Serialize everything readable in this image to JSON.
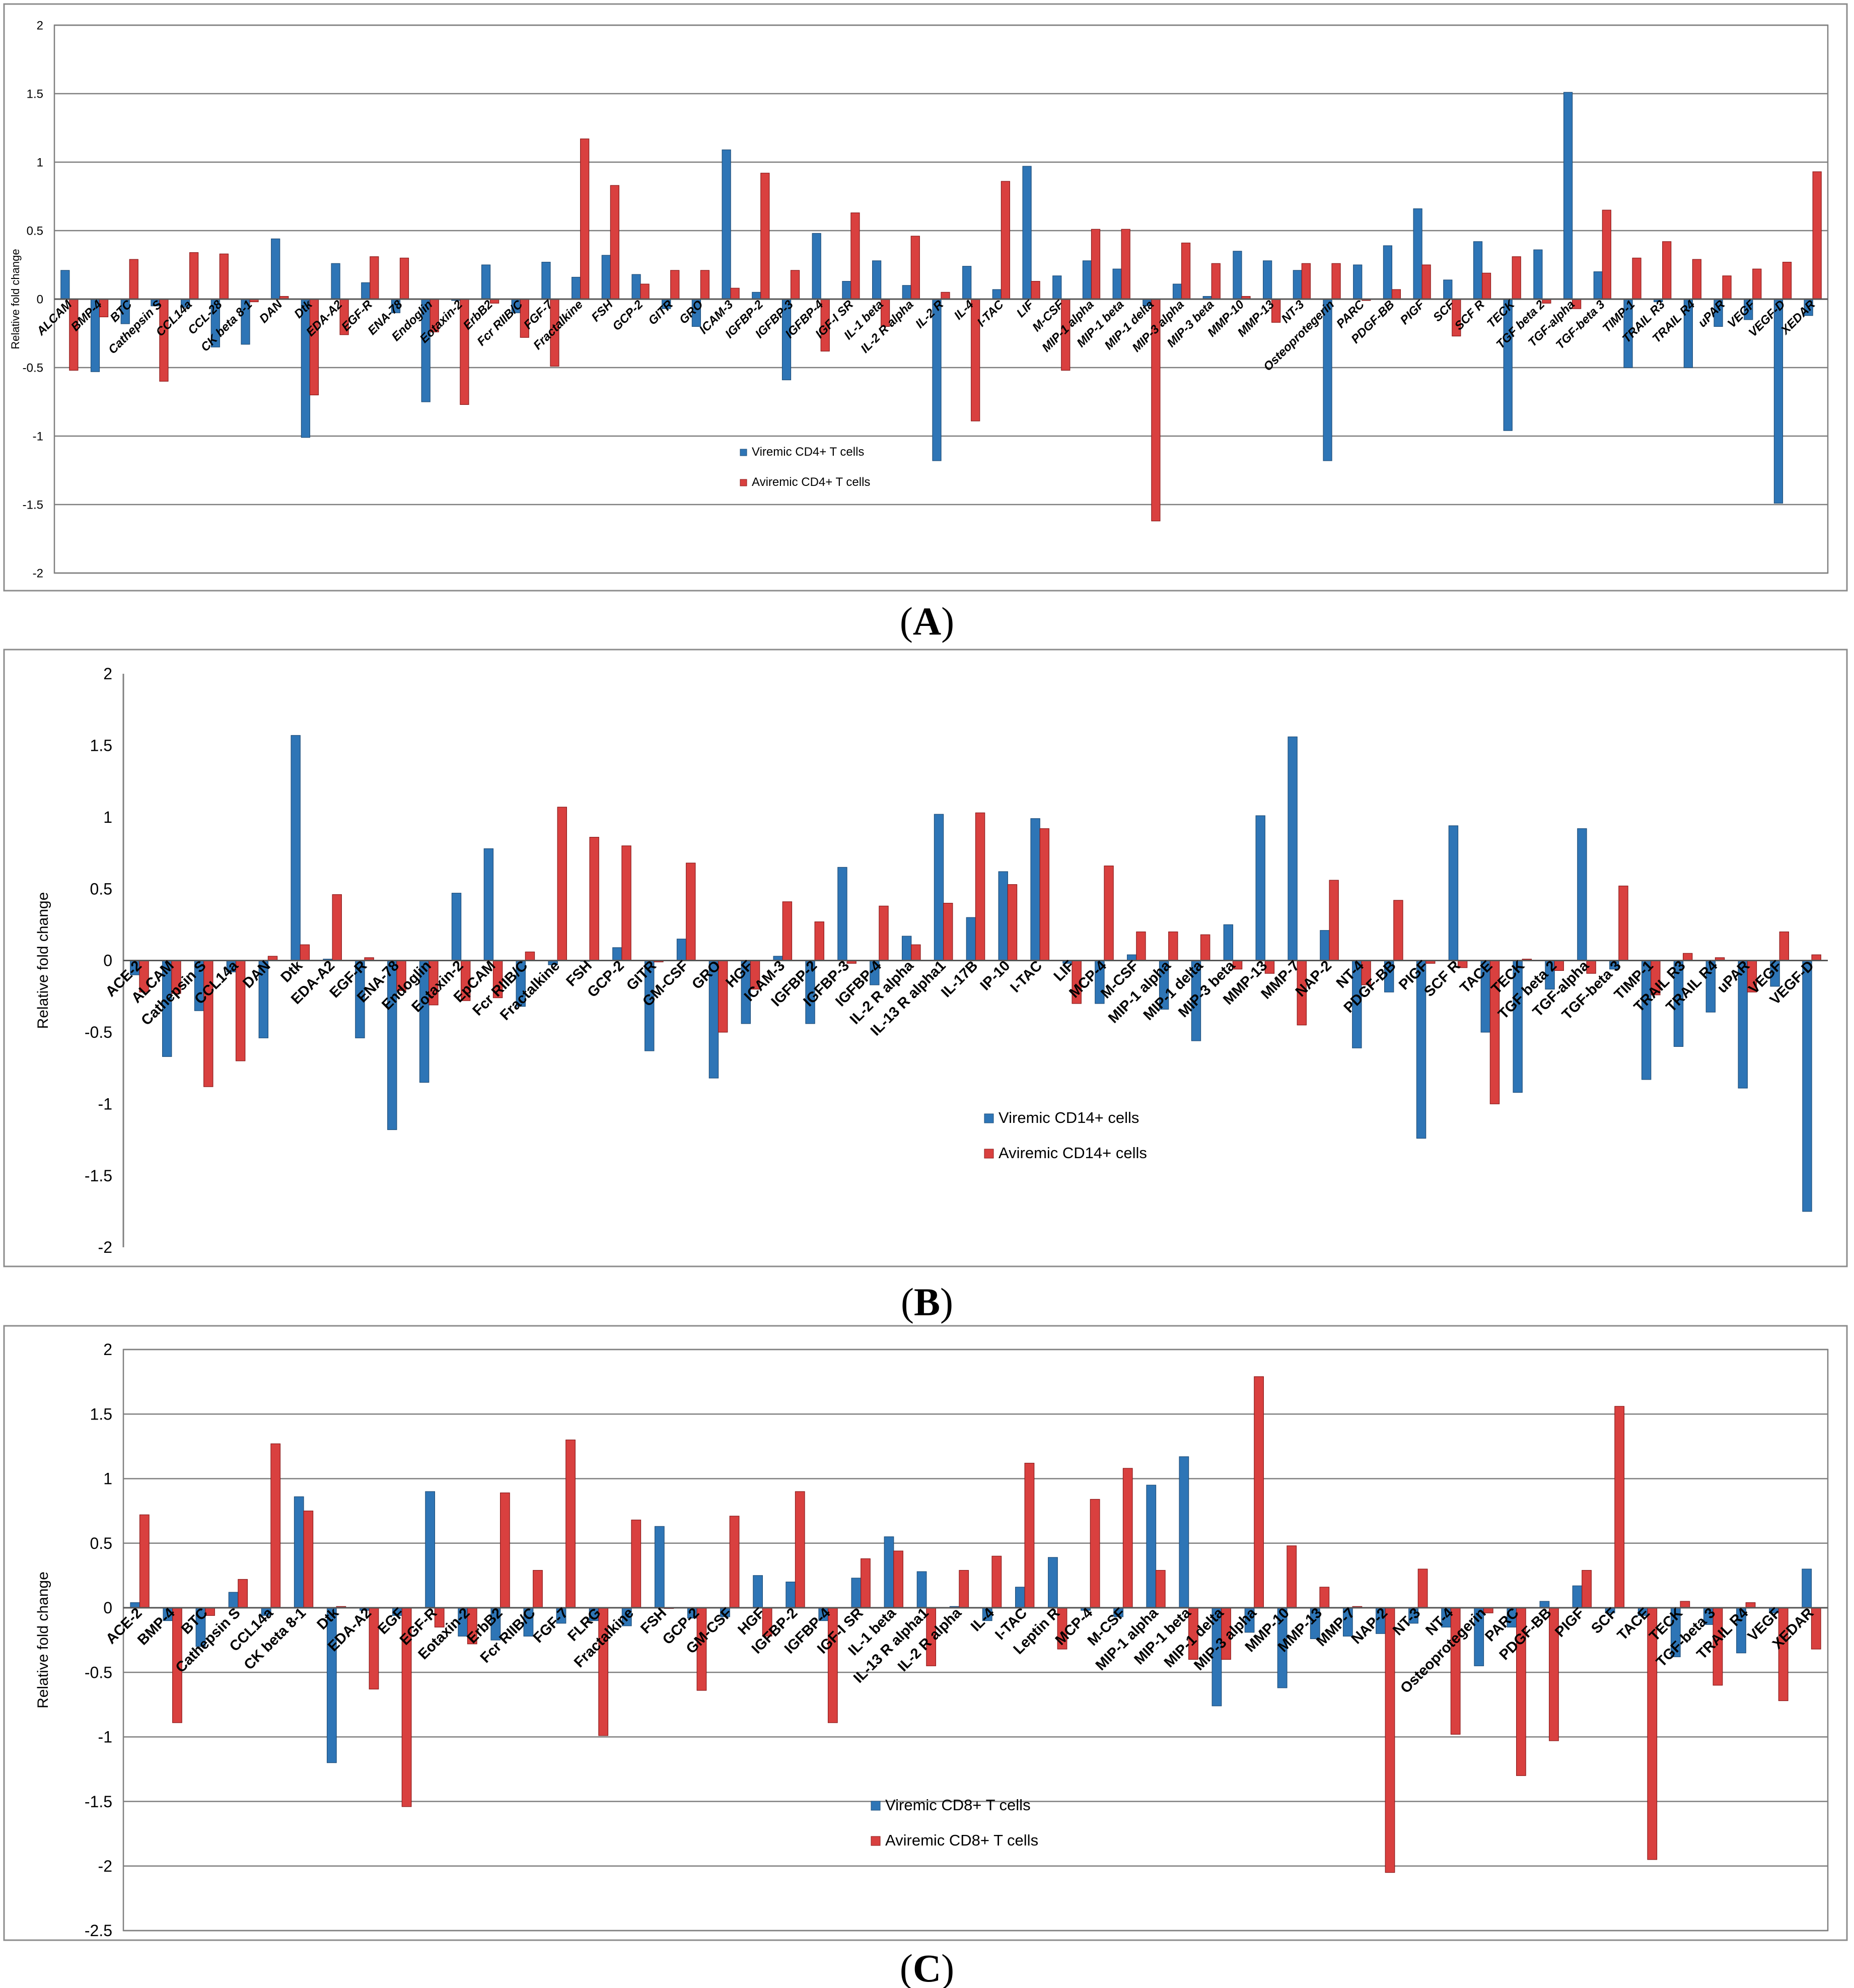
{
  "panels": [
    {
      "letter": "A"
    },
    {
      "letter": "B"
    },
    {
      "letter": "C"
    }
  ],
  "colors": {
    "viremic": "#2E75B6",
    "aviremic": "#D9403F",
    "viremic_edge": "#1F4E79",
    "aviremic_edge": "#8B1A1A",
    "grid": "#7F7F7F"
  },
  "chart_data": [
    {
      "type": "bar",
      "title": "",
      "xlabel": "",
      "ylabel": "Relative fold change",
      "ylim": [
        -2,
        2
      ],
      "yticks": [
        -2,
        -1.5,
        -1,
        -0.5,
        0,
        0.5,
        1,
        1.5,
        2
      ],
      "ytick_labels": [
        "-2",
        "-1.5",
        "-1",
        "-0.5",
        "0",
        "0.5",
        "1",
        "1.5",
        "2"
      ],
      "grid": true,
      "legend": "center",
      "categories": [
        "ALCAM",
        "BMP-4",
        "BTC",
        "Cathepsin S",
        "CCL14a",
        "CCL-28",
        "CK beta 8-1",
        "DAN",
        "Dtk",
        "EDA-A2",
        "EGF-R",
        "ENA-78",
        "Endoglin",
        "Eotaxin-2",
        "ErbB2",
        "Fcr RIIB/C",
        "FGF-7",
        "Fractalkine",
        "FSH",
        "GCP-2",
        "GITR",
        "GRO",
        "ICAM-3",
        "IGFBP-2",
        "IGFBP-3",
        "IGFBP-4",
        "IGF-I SR",
        "IL-1 beta",
        "IL-2 R alpha",
        "IL-2 R",
        "IL-4",
        "I-TAC",
        "LIF",
        "M-CSF",
        "MIP-1 alpha",
        "MIP-1 beta",
        "MIP-1 delta",
        "MIP-3 alpha",
        "MIP-3 beta",
        "MMP-10",
        "MMP-13",
        "NT-3",
        "Osteoprotegerin",
        "PARC",
        "PDGF-BB",
        "PIGF",
        "SCF",
        "SCF R",
        "TECK",
        "TGF beta 2",
        "TGF-alpha",
        "TGF-beta 3",
        "TIMP-1",
        "TRAIL R3",
        "TRAIL R4",
        "uPAR",
        "VEGF",
        "VEGF-D",
        "XEDAR"
      ],
      "series": [
        {
          "name": "Viremic CD4+ T cells",
          "values": [
            0.21,
            -0.53,
            -0.18,
            -0.05,
            -0.06,
            -0.35,
            -0.33,
            0.44,
            -1.01,
            0.26,
            0.12,
            -0.1,
            -0.75,
            -0.01,
            0.25,
            -0.1,
            0.27,
            0.16,
            0.32,
            0.18,
            -0.07,
            -0.2,
            1.09,
            0.05,
            -0.59,
            0.48,
            0.13,
            0.28,
            0.1,
            -1.18,
            0.24,
            0.07,
            0.97,
            0.17,
            0.28,
            0.22,
            -0.05,
            0.11,
            0.02,
            0.35,
            0.28,
            0.21,
            -1.18,
            0.25,
            0.39,
            0.66,
            0.14,
            0.42,
            -0.96,
            0.36,
            1.51,
            0.2,
            -0.5,
            -0.02,
            -0.5,
            -0.2,
            -0.15,
            -1.49,
            -0.12
          ]
        },
        {
          "name": "Aviremic CD4+ T cells",
          "values": [
            -0.52,
            -0.13,
            0.29,
            -0.6,
            0.34,
            0.33,
            -0.02,
            0.02,
            -0.7,
            -0.26,
            0.31,
            0.3,
            -0.24,
            -0.77,
            -0.03,
            -0.28,
            -0.49,
            1.17,
            0.83,
            0.11,
            0.21,
            0.21,
            0.08,
            0.92,
            0.21,
            -0.38,
            0.63,
            -0.2,
            0.46,
            0.05,
            -0.89,
            0.86,
            0.13,
            -0.52,
            0.51,
            0.51,
            -1.62,
            0.41,
            0.26,
            0.02,
            -0.17,
            0.26,
            0.26,
            -0.01,
            0.07,
            0.25,
            -0.27,
            0.19,
            0.31,
            -0.03,
            -0.07,
            0.65,
            0.3,
            0.42,
            0.29,
            0.17,
            0.22,
            0.27,
            0.93
          ]
        }
      ]
    },
    {
      "type": "bar",
      "title": "",
      "xlabel": "",
      "ylabel": "Relative fold change",
      "ylim": [
        -2,
        2
      ],
      "yticks": [
        -2,
        -1.5,
        -1,
        -0.5,
        0,
        0.5,
        1,
        1.5,
        2
      ],
      "ytick_labels": [
        "-2",
        "-1.5",
        "-1",
        "-0.5",
        "0",
        "0.5",
        "1",
        "1.5",
        "2"
      ],
      "grid": false,
      "legend": "bottom-center",
      "categories": [
        "ACE-2",
        "ALCAM",
        "Cathepsin S",
        "CCL14a",
        "DAN",
        "Dtk",
        "EDA-A2",
        "EGF-R",
        "ENA-78",
        "Endoglin",
        "Eotaxin-2",
        "EpCAM",
        "Fcr RIIB/C",
        "Fractalkine",
        "FSH",
        "GCP-2",
        "GITR",
        "GM-CSF",
        "GRO",
        "HGF",
        "ICAM-3",
        "IGFBP-2",
        "IGFBP-3",
        "IGFBP-4",
        "IL-2 R alpha",
        "IL-13 R alpha1",
        "IL-17B",
        "IP-10",
        "I-TAC",
        "LIF",
        "MCP-4",
        "M-CSF",
        "MIP-1 alpha",
        "MIP-1 delta",
        "MIP-3 beta",
        "MMP-13",
        "MMP-7",
        "NAP-2",
        "NT-4",
        "PDGF-BB",
        "PIGF",
        "SCF R",
        "TACE",
        "TECK",
        "TGF beta 2",
        "TGF-alpha",
        "TGF-beta 3",
        "TIMP-1",
        "TRAIL R3",
        "TRAIL R4",
        "uPAR",
        "VEGF",
        "VEGF-D"
      ],
      "series": [
        {
          "name": "Viremic CD14+  cells",
          "values": [
            -0.1,
            -0.67,
            -0.35,
            -0.08,
            -0.54,
            1.57,
            0.01,
            -0.54,
            -1.18,
            -0.85,
            0.47,
            0.78,
            -0.32,
            -0.03,
            0.0,
            0.09,
            -0.63,
            0.15,
            -0.82,
            -0.44,
            0.03,
            -0.44,
            0.65,
            -0.17,
            0.17,
            1.02,
            0.3,
            0.62,
            0.99,
            -0.02,
            -0.3,
            0.04,
            -0.34,
            -0.56,
            0.25,
            1.01,
            1.56,
            0.21,
            -0.61,
            -0.22,
            -1.24,
            0.94,
            -0.5,
            -0.92,
            -0.2,
            0.92,
            -0.06,
            -0.83,
            -0.6,
            -0.36,
            -0.89,
            -0.18,
            -1.75
          ]
        },
        {
          "name": "Aviremic CD14+  cells",
          "values": [
            -0.22,
            -0.23,
            -0.88,
            -0.7,
            0.03,
            0.11,
            0.46,
            0.02,
            -0.21,
            -0.31,
            -0.28,
            -0.26,
            0.06,
            1.07,
            0.86,
            0.8,
            -0.01,
            0.68,
            -0.5,
            -0.2,
            0.41,
            0.27,
            -0.02,
            0.38,
            0.11,
            0.4,
            1.03,
            0.53,
            0.92,
            -0.3,
            0.66,
            0.2,
            0.2,
            0.18,
            -0.06,
            -0.09,
            -0.45,
            0.56,
            -0.17,
            0.42,
            -0.02,
            -0.05,
            -1.0,
            0.01,
            -0.07,
            -0.09,
            0.52,
            -0.24,
            0.05,
            0.02,
            -0.22,
            0.2,
            0.04
          ]
        }
      ]
    },
    {
      "type": "bar",
      "title": "",
      "xlabel": "",
      "ylabel": "Relative fold change",
      "ylim": [
        -2.5,
        2
      ],
      "yticks": [
        -2.5,
        -2,
        -1.5,
        -1,
        -0.5,
        0,
        0.5,
        1,
        1.5,
        2
      ],
      "ytick_labels": [
        "-2.5",
        "-2",
        "-1.5",
        "-1",
        "-0.5",
        "0",
        "0.5",
        "1",
        "1.5",
        "2"
      ],
      "grid": true,
      "legend": "bottom-center",
      "categories": [
        "ACE-2",
        "BMP-4",
        "BTC",
        "Cathepsin S",
        "CCL14a",
        "CK beta 8-1",
        "Dtk",
        "EDA-A2",
        "EGF",
        "EGF-R",
        "Eotaxin-2",
        "ErbB2",
        "Fcr RIIB/C",
        "FGF-7",
        "FLRG",
        "Fractalkine",
        "FSH",
        "GCP-2",
        "GM-CSF",
        "HGF",
        "IGFBP-2",
        "IGFBP-4",
        "IGF-I SR",
        "IL-1 beta",
        "IL-13 R alpha1",
        "IL-2 R alpha",
        "IL-4",
        "I-TAC",
        "Leptin R",
        "MCP-4",
        "M-CSF",
        "MIP-1 alpha",
        "MIP-1 beta",
        "MIP-1 delta",
        "MIP-3 alpha",
        "MMP-10",
        "MMP-13",
        "MMP-7",
        "NAP-2",
        "NT-3",
        "NT-4",
        "Osteoprotegerin",
        "PARC",
        "PDGF-BB",
        "PIGF",
        "SCF",
        "TACE",
        "TECK",
        "TGF-beta 3",
        "TRAIL R4",
        "VEGF",
        "XEDAR"
      ],
      "series": [
        {
          "name": "Viremic CD8+  T cells",
          "values": [
            0.04,
            -0.1,
            -0.3,
            0.12,
            -0.06,
            0.86,
            -1.2,
            -0.02,
            -0.06,
            0.9,
            -0.22,
            -0.25,
            -0.22,
            -0.12,
            -0.1,
            -0.14,
            0.63,
            -0.08,
            -0.07,
            0.25,
            0.2,
            -0.1,
            0.23,
            0.55,
            0.28,
            0.01,
            -0.1,
            0.16,
            0.39,
            -0.02,
            -0.07,
            0.95,
            1.17,
            -0.76,
            -0.19,
            -0.62,
            -0.24,
            -0.22,
            -0.2,
            -0.12,
            -0.15,
            -0.45,
            -0.15,
            0.05,
            0.17,
            -0.04,
            -0.06,
            -0.38,
            -0.13,
            -0.35,
            -0.04,
            0.3
          ]
        },
        {
          "name": "Aviremic CD8+ T cells",
          "values": [
            0.72,
            -0.89,
            -0.06,
            0.22,
            1.27,
            0.75,
            0.01,
            -0.63,
            -1.54,
            -0.15,
            -0.28,
            0.89,
            0.29,
            1.3,
            -0.99,
            0.68,
            0.0,
            -0.64,
            0.71,
            -0.22,
            0.9,
            -0.89,
            0.38,
            0.44,
            -0.45,
            0.29,
            0.4,
            1.12,
            -0.32,
            0.84,
            1.08,
            0.29,
            -0.4,
            -0.4,
            1.79,
            0.48,
            0.16,
            0.01,
            -2.05,
            0.3,
            -0.98,
            -0.04,
            -1.3,
            -1.03,
            0.29,
            1.56,
            -1.95,
            0.05,
            -0.6,
            0.04,
            -0.72,
            -0.32
          ]
        }
      ]
    }
  ]
}
